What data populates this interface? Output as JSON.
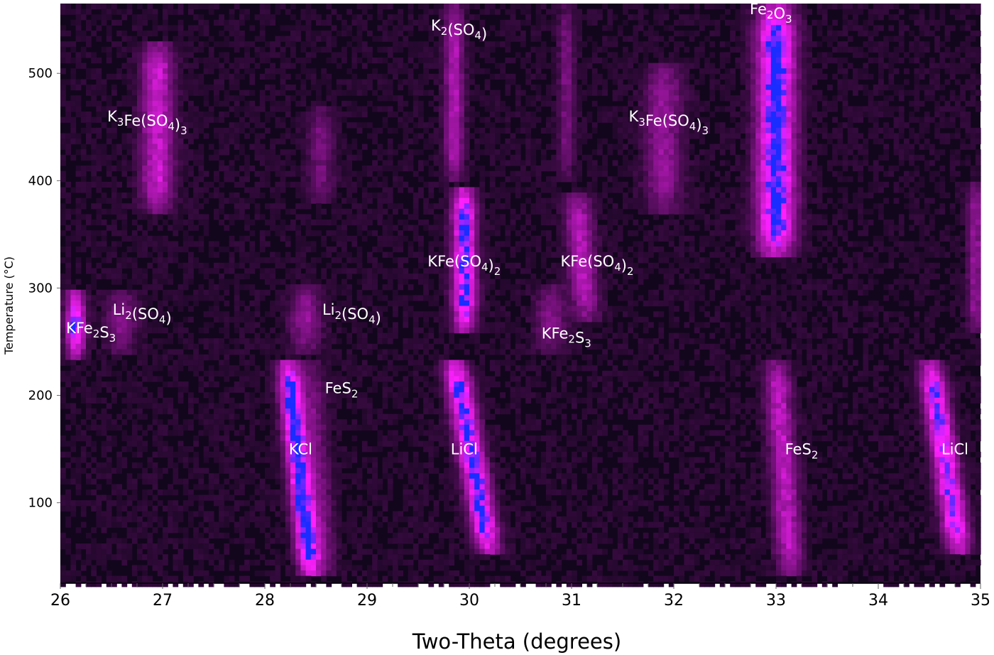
{
  "chart_data": {
    "type": "heatmap",
    "title": "",
    "xlabel": "Two-Theta (degrees)",
    "ylabel": "Temperature (°C)",
    "xlim": [
      26,
      35
    ],
    "ylim": [
      25,
      565
    ],
    "x_ticks": [
      "26",
      "27",
      "28",
      "29",
      "30",
      "31",
      "32",
      "33",
      "34",
      "35"
    ],
    "y_ticks": [
      "100",
      "200",
      "300",
      "400",
      "500"
    ],
    "colormap": {
      "low": "#12061c",
      "mid": "#ff20ff",
      "high": "#1a2cff"
    },
    "peaks": [
      {
        "name": "KCl",
        "x_low": 28.45,
        "x_high": 28.22,
        "t_low": 30,
        "t_high": 235,
        "intensity": 1.0,
        "width": 0.22
      },
      {
        "name": "LiCl",
        "x_low": 30.2,
        "x_high": 29.85,
        "t_low": 50,
        "t_high": 235,
        "intensity": 0.95,
        "width": 0.24
      },
      {
        "name": "LiCl",
        "x_low": 34.8,
        "x_high": 34.5,
        "t_low": 50,
        "t_high": 235,
        "intensity": 0.85,
        "width": 0.24
      },
      {
        "name": "FeS2",
        "x_low": 33.15,
        "x_high": 33.0,
        "t_low": 30,
        "t_high": 235,
        "intensity": 0.5,
        "width": 0.25
      },
      {
        "name": "FeS2",
        "x_low": 28.6,
        "x_high": 28.45,
        "t_low": 30,
        "t_high": 235,
        "intensity": 0.25,
        "width": 0.22
      },
      {
        "name": "KFe2S3",
        "x_low": 26.15,
        "x_high": 26.15,
        "t_low": 235,
        "t_high": 300,
        "intensity": 0.9,
        "width": 0.18
      },
      {
        "name": "Li2(SO4)",
        "x_low": 26.6,
        "x_high": 26.6,
        "t_low": 240,
        "t_high": 300,
        "intensity": 0.3,
        "width": 0.3
      },
      {
        "name": "Li2(SO4)",
        "x_low": 28.4,
        "x_high": 28.4,
        "t_low": 240,
        "t_high": 305,
        "intensity": 0.35,
        "width": 0.3
      },
      {
        "name": "KFe2S3",
        "x_low": 30.8,
        "x_high": 30.8,
        "t_low": 240,
        "t_high": 305,
        "intensity": 0.3,
        "width": 0.3
      },
      {
        "name": "KFe(SO4)2",
        "x_low": 29.95,
        "x_high": 29.95,
        "t_low": 260,
        "t_high": 395,
        "intensity": 0.95,
        "width": 0.22
      },
      {
        "name": "KFe(SO4)2",
        "x_low": 31.15,
        "x_high": 31.05,
        "t_low": 270,
        "t_high": 390,
        "intensity": 0.5,
        "width": 0.25
      },
      {
        "name": "K3Fe(SO4)3",
        "x_low": 26.95,
        "x_high": 26.95,
        "t_low": 370,
        "t_high": 530,
        "intensity": 0.55,
        "width": 0.3
      },
      {
        "name": "K3Fe(SO4)3",
        "x_low": 31.9,
        "x_high": 31.9,
        "t_low": 370,
        "t_high": 510,
        "intensity": 0.35,
        "width": 0.35
      },
      {
        "name": "K2(SO4)",
        "x_low": 29.85,
        "x_high": 29.85,
        "t_low": 400,
        "t_high": 565,
        "intensity": 0.45,
        "width": 0.18
      },
      {
        "name": "K2(SO4)",
        "x_low": 30.95,
        "x_high": 30.95,
        "t_low": 400,
        "t_high": 565,
        "intensity": 0.25,
        "width": 0.15
      },
      {
        "name": "Fe2O3",
        "x_low": 33.0,
        "x_high": 33.0,
        "t_low": 330,
        "t_high": 565,
        "intensity": 1.0,
        "width": 0.35
      },
      {
        "name": "",
        "x_low": 28.55,
        "x_high": 28.55,
        "t_low": 380,
        "t_high": 470,
        "intensity": 0.25,
        "width": 0.25
      },
      {
        "name": "",
        "x_low": 34.95,
        "x_high": 34.95,
        "t_low": 260,
        "t_high": 400,
        "intensity": 0.35,
        "width": 0.15
      }
    ],
    "annotations": [
      {
        "base": "K",
        "sub": "2",
        "rest": "(SO",
        "sub2": "4",
        "rest2": ")",
        "x": 29.9,
        "t": 540
      },
      {
        "base": "Fe",
        "sub": "2",
        "rest": "O",
        "sub2": "3",
        "rest2": "",
        "x": 32.95,
        "t": 555
      },
      {
        "base": "K",
        "sub": "3",
        "rest": "Fe(SO",
        "sub2": "4",
        "rest2": ")3",
        "x": 26.85,
        "t": 455
      },
      {
        "base": "K",
        "sub": "3",
        "rest": "Fe(SO",
        "sub2": "4",
        "rest2": ")3",
        "x": 31.95,
        "t": 455
      },
      {
        "base": "KFe(SO",
        "sub": "4",
        "rest": ")",
        "sub2": "2",
        "rest2": "",
        "x": 29.95,
        "t": 320
      },
      {
        "base": "KFe(SO",
        "sub": "4",
        "rest": ")",
        "sub2": "2",
        "rest2": "",
        "x": 31.25,
        "t": 320
      },
      {
        "base": "Li",
        "sub": "2",
        "rest": "(SO",
        "sub2": "4",
        "rest2": ")",
        "x": 26.8,
        "t": 275
      },
      {
        "base": "Li",
        "sub": "2",
        "rest": "(SO",
        "sub2": "4",
        "rest2": ")",
        "x": 28.85,
        "t": 275
      },
      {
        "base": "KFe",
        "sub": "2",
        "rest": "S",
        "sub2": "3",
        "rest2": "",
        "x": 26.3,
        "t": 258
      },
      {
        "base": "KFe",
        "sub": "2",
        "rest": "S",
        "sub2": "3",
        "rest2": "",
        "x": 30.95,
        "t": 253
      },
      {
        "base": "FeS",
        "sub": "2",
        "rest": "",
        "sub2": "",
        "rest2": "",
        "x": 28.75,
        "t": 202
      },
      {
        "base": "KCl",
        "sub": "",
        "rest": "",
        "sub2": "",
        "rest2": "",
        "x": 28.35,
        "t": 145
      },
      {
        "base": "LiCl",
        "sub": "",
        "rest": "",
        "sub2": "",
        "rest2": "",
        "x": 29.95,
        "t": 145
      },
      {
        "base": "FeS",
        "sub": "2",
        "rest": "",
        "sub2": "",
        "rest2": "",
        "x": 33.25,
        "t": 145
      },
      {
        "base": "LiCl",
        "sub": "",
        "rest": "",
        "sub2": "",
        "rest2": "",
        "x": 34.75,
        "t": 145
      }
    ],
    "grid": false,
    "legend": "none"
  }
}
